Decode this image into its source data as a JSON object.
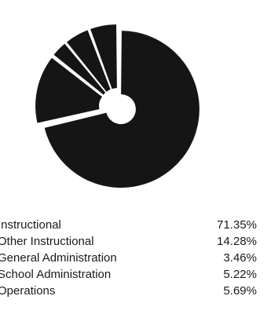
{
  "chart_data": {
    "type": "pie",
    "title": "",
    "categories": [
      "Instructional",
      "Other Instructional",
      "General Administration",
      "School Administration",
      "Operations"
    ],
    "values": [
      71.35,
      14.28,
      3.46,
      5.22,
      5.69
    ],
    "value_labels": [
      "71.35%",
      "14.28%",
      "3.46%",
      "5.22%",
      "5.69%"
    ],
    "legend_position": "bottom",
    "slice_color": "#151515",
    "background": "#ffffff",
    "exploded": true,
    "center_hole": true
  }
}
